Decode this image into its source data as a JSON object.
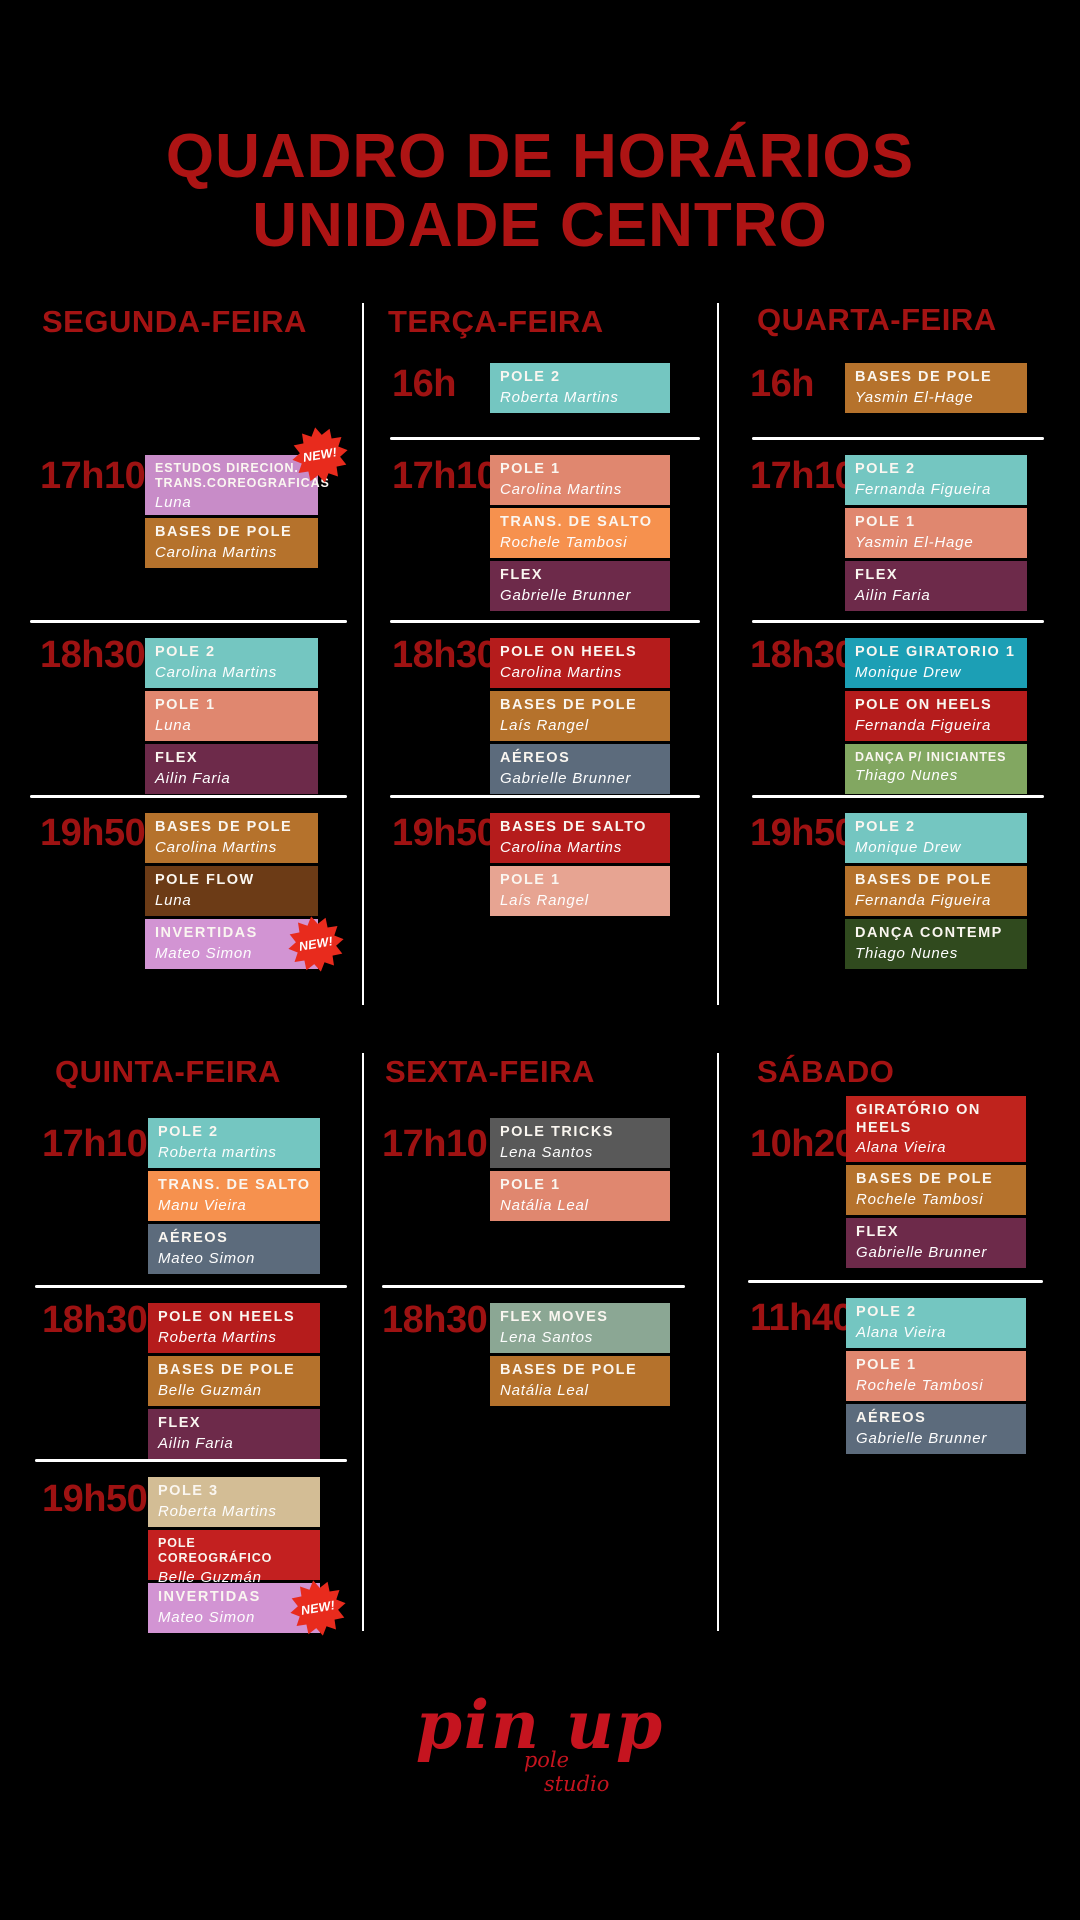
{
  "title": {
    "line1": "QUADRO DE HORÁRIOS",
    "line2": "UNIDADE CENTRO"
  },
  "badge_label": "NEW!",
  "logo": {
    "name": "pin up",
    "sub1": "pole",
    "sub2": "studio"
  },
  "colors": {
    "bg": "#000000",
    "title": "#ad1414",
    "heading": "#a41313",
    "time": "#9e1212",
    "divider": "#ffffff",
    "badge": "#e82b1d",
    "logo": "#c5141f"
  },
  "days": [
    {
      "name": "SEGUNDA-FEIRA",
      "slots": [
        {
          "time": "17h10",
          "classes": [
            {
              "title": "ESTUDOS DIRECION. TRANS.COREOGRAFICAS",
              "instructor": "Luna",
              "bg": "#c88cc8",
              "small_title": true,
              "tall": "t2",
              "new": true,
              "badge_pos": "corner"
            },
            {
              "title": "BASES DE POLE",
              "instructor": "Carolina Martins",
              "bg": "#b5722c"
            }
          ]
        },
        {
          "time": "18h30",
          "classes": [
            {
              "title": "POLE 2",
              "instructor": "Carolina Martins",
              "bg": "#74c6c1"
            },
            {
              "title": "POLE 1",
              "instructor": "Luna",
              "bg": "#e0876f"
            },
            {
              "title": "FLEX",
              "instructor": "Ailin Faria",
              "bg": "#6d2a4a"
            }
          ]
        },
        {
          "time": "19h50",
          "classes": [
            {
              "title": "BASES DE POLE",
              "instructor": "Carolina Martins",
              "bg": "#b5722c"
            },
            {
              "title": "POLE FLOW",
              "instructor": "Luna",
              "bg": "#6c3b16"
            },
            {
              "title": "INVERTIDAS",
              "instructor": "Mateo Simon",
              "bg": "#d294d3",
              "new": true,
              "badge_pos": "side"
            }
          ]
        }
      ]
    },
    {
      "name": "TERÇA-FEIRA",
      "slots": [
        {
          "time": "16h",
          "classes": [
            {
              "title": "POLE 2",
              "instructor": "Roberta Martins",
              "bg": "#74c6c1"
            }
          ]
        },
        {
          "time": "17h10",
          "classes": [
            {
              "title": "POLE 1",
              "instructor": "Carolina Martins",
              "bg": "#e0876f"
            },
            {
              "title": "TRANS. DE SALTO",
              "instructor": "Rochele Tambosi",
              "bg": "#f6914e"
            },
            {
              "title": "FLEX",
              "instructor": "Gabrielle Brunner",
              "bg": "#6d2a4a"
            }
          ]
        },
        {
          "time": "18h30",
          "classes": [
            {
              "title": "POLE ON HEELS",
              "instructor": "Carolina Martins",
              "bg": "#b51c1c"
            },
            {
              "title": "BASES DE POLE",
              "instructor": "Laís Rangel",
              "bg": "#b5722c"
            },
            {
              "title": "AÉREOS",
              "instructor": "Gabrielle Brunner",
              "bg": "#5c6b7c"
            }
          ]
        },
        {
          "time": "19h50",
          "classes": [
            {
              "title": "BASES DE SALTO",
              "instructor": "Carolina Martins",
              "bg": "#b51c1c"
            },
            {
              "title": "POLE 1",
              "instructor": "Laís Rangel",
              "bg": "#e7a492"
            }
          ]
        }
      ]
    },
    {
      "name": "QUARTA-FEIRA",
      "slots": [
        {
          "time": "16h",
          "classes": [
            {
              "title": "BASES DE POLE",
              "instructor": "Yasmin El-Hage",
              "bg": "#b5722c"
            }
          ]
        },
        {
          "time": "17h10",
          "classes": [
            {
              "title": "POLE 2",
              "instructor": "Fernanda Figueira",
              "bg": "#74c6c1"
            },
            {
              "title": "POLE 1",
              "instructor": "Yasmin El-Hage",
              "bg": "#e0876f"
            },
            {
              "title": "FLEX",
              "instructor": "Ailin Faria",
              "bg": "#6d2a4a"
            }
          ]
        },
        {
          "time": "18h30",
          "classes": [
            {
              "title": "POLE GIRATORIO 1",
              "instructor": "Monique Drew",
              "bg": "#1c9fb5"
            },
            {
              "title": "POLE ON HEELS",
              "instructor": "Fernanda Figueira",
              "bg": "#b51c1c"
            },
            {
              "title": "DANÇA P/ INICIANTES",
              "instructor": "Thiago Nunes",
              "bg": "#82a761",
              "small_title": true
            }
          ]
        },
        {
          "time": "19h50",
          "classes": [
            {
              "title": "POLE 2",
              "instructor": "Monique Drew",
              "bg": "#74c6c1"
            },
            {
              "title": "BASES DE POLE",
              "instructor": "Fernanda Figueira",
              "bg": "#b5722c"
            },
            {
              "title": "DANÇA CONTEMP",
              "instructor": "Thiago Nunes",
              "bg": "#304a1e"
            }
          ]
        }
      ]
    },
    {
      "name": "QUINTA-FEIRA",
      "slots": [
        {
          "time": "17h10",
          "classes": [
            {
              "title": "POLE 2",
              "instructor": "Roberta martins",
              "bg": "#74c6c1"
            },
            {
              "title": "TRANS. DE SALTO",
              "instructor": "Manu Vieira",
              "bg": "#f6914e"
            },
            {
              "title": "AÉREOS",
              "instructor": "Mateo Simon",
              "bg": "#5c6b7c"
            }
          ]
        },
        {
          "time": "18h30",
          "classes": [
            {
              "title": "POLE ON HEELS",
              "instructor": "Roberta Martins",
              "bg": "#b51c1c"
            },
            {
              "title": "BASES DE POLE",
              "instructor": "Belle Guzmán",
              "bg": "#b5722c"
            },
            {
              "title": "FLEX",
              "instructor": "Ailin Faria",
              "bg": "#6d2a4a"
            }
          ]
        },
        {
          "time": "19h50",
          "classes": [
            {
              "title": "POLE 3",
              "instructor": "Roberta Martins",
              "bg": "#d3bd95"
            },
            {
              "title": "POLE COREOGRÁFICO",
              "instructor": "Belle Guzmán",
              "bg": "#c32020",
              "small_title": true
            },
            {
              "title": "INVERTIDAS",
              "instructor": "Mateo Simon",
              "bg": "#d294d3",
              "new": true,
              "badge_pos": "side"
            }
          ]
        }
      ]
    },
    {
      "name": "SEXTA-FEIRA",
      "slots": [
        {
          "time": "17h10",
          "classes": [
            {
              "title": "POLE TRICKS",
              "instructor": "Lena Santos",
              "bg": "#595959"
            },
            {
              "title": "POLE 1",
              "instructor": "Natália Leal",
              "bg": "#e0876f"
            }
          ]
        },
        {
          "time": "18h30",
          "classes": [
            {
              "title": "FLEX MOVES",
              "instructor": "Lena Santos",
              "bg": "#8ba794"
            },
            {
              "title": "BASES DE POLE",
              "instructor": "Natália Leal",
              "bg": "#b5722c"
            }
          ]
        }
      ]
    },
    {
      "name": "SÁBADO",
      "slots": [
        {
          "time": "10h20",
          "classes": [
            {
              "title": "GIRATÓRIO ON HEELS",
              "instructor": "Alana Vieira",
              "bg": "#bf231d",
              "tall": "t3"
            },
            {
              "title": "BASES DE POLE",
              "instructor": "Rochele Tambosi",
              "bg": "#b5722c"
            },
            {
              "title": "FLEX",
              "instructor": "Gabrielle Brunner",
              "bg": "#6d2a4a"
            }
          ]
        },
        {
          "time": "11h40",
          "classes": [
            {
              "title": "POLE 2",
              "instructor": "Alana Vieira",
              "bg": "#74c6c1"
            },
            {
              "title": "POLE 1",
              "instructor": "Rochele Tambosi",
              "bg": "#e0876f"
            },
            {
              "title": "AÉREOS",
              "instructor": "Gabrielle Brunner",
              "bg": "#5c6b7c"
            }
          ]
        }
      ]
    }
  ]
}
